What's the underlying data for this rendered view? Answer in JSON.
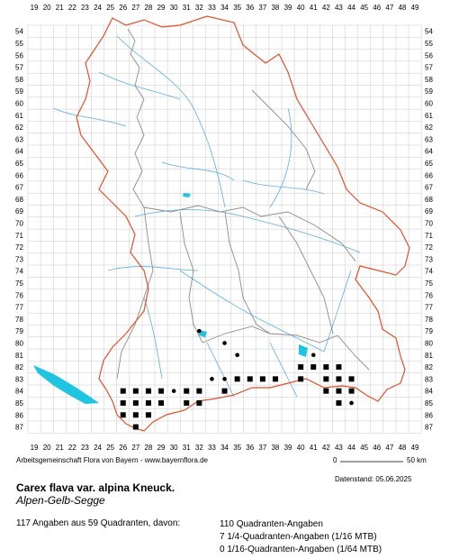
{
  "grid": {
    "columns": [
      "19",
      "20",
      "21",
      "22",
      "23",
      "24",
      "25",
      "26",
      "27",
      "28",
      "29",
      "30",
      "31",
      "32",
      "33",
      "34",
      "35",
      "36",
      "37",
      "38",
      "39",
      "40",
      "41",
      "42",
      "43",
      "44",
      "45",
      "46",
      "47",
      "48",
      "49"
    ],
    "rows": [
      "54",
      "55",
      "56",
      "57",
      "58",
      "59",
      "60",
      "61",
      "62",
      "63",
      "64",
      "65",
      "66",
      "67",
      "68",
      "69",
      "70",
      "71",
      "72",
      "73",
      "74",
      "75",
      "76",
      "77",
      "78",
      "79",
      "80",
      "81",
      "82",
      "83",
      "84",
      "85",
      "86",
      "87"
    ]
  },
  "colors": {
    "state_border": "#e0502a",
    "district_border": "#8c8c8c",
    "rivers": "#5aaee6",
    "lakes": "#1fc4e0",
    "grid": "#c8c8c8",
    "markers": "#000000"
  },
  "quadrant_records": [
    [
      26,
      84
    ],
    [
      27,
      84
    ],
    [
      26,
      85
    ],
    [
      27,
      85
    ],
    [
      26,
      86
    ],
    [
      27,
      86
    ],
    [
      27,
      87
    ],
    [
      28,
      84
    ],
    [
      28,
      85
    ],
    [
      28,
      86
    ],
    [
      29,
      84
    ],
    [
      29,
      85
    ],
    [
      31,
      84
    ],
    [
      31,
      85
    ],
    [
      32,
      84
    ],
    [
      32,
      85
    ],
    [
      34,
      84
    ],
    [
      35,
      83
    ],
    [
      36,
      83
    ],
    [
      37,
      83
    ],
    [
      38,
      83
    ],
    [
      40,
      82
    ],
    [
      41,
      82
    ],
    [
      40,
      83
    ],
    [
      42,
      82
    ],
    [
      43,
      82
    ],
    [
      42,
      83
    ],
    [
      43,
      83
    ],
    [
      44,
      83
    ],
    [
      42,
      84
    ],
    [
      43,
      84
    ],
    [
      44,
      84
    ],
    [
      43,
      85
    ]
  ],
  "point_records": [
    [
      32,
      79
    ],
    [
      34,
      80
    ],
    [
      35,
      81
    ],
    [
      41,
      81
    ],
    [
      32,
      85
    ],
    [
      33,
      83
    ],
    [
      34,
      83
    ],
    [
      30,
      84
    ],
    [
      44,
      85
    ],
    [
      37,
      83
    ]
  ],
  "footer": {
    "credit": "Arbeitsgemeinschaft Flora von Bayern - www.bayernflora.de",
    "scale_start": "0",
    "scale_end": "50 km",
    "date": "Datenstand: 05.06.2025",
    "taxon_name": "Carex flava var. alpina Kneuck.",
    "common_name": "Alpen-Gelb-Segge",
    "summary": "117 Angaben aus 59 Quadranten, davon:",
    "breakdown": [
      "110 Quadranten-Angaben",
      "7 1/4-Quadranten-Angaben (1/16 MTB)",
      "0 1/16-Quadranten-Angaben (1/64 MTB)"
    ]
  }
}
